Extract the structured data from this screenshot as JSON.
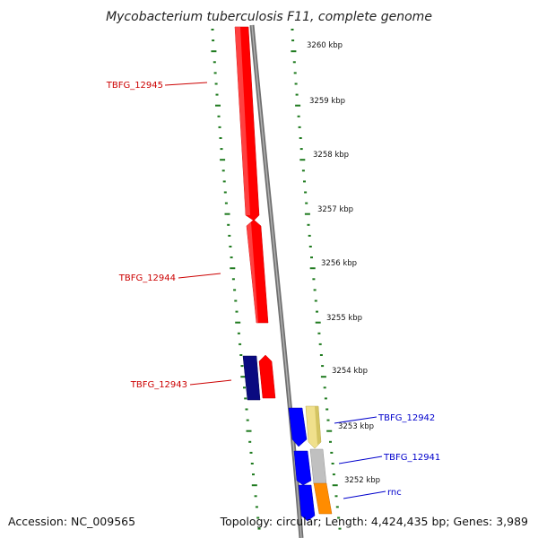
{
  "title": "Mycobacterium tuberculosis F11, complete genome",
  "footer": {
    "accession": "Accession: NC_009565",
    "stats": "Topology: circular; Length: 4,424,435 bp; Genes: 3,989"
  },
  "ticks": [
    "3260 kbp",
    "3259 kbp",
    "3258 kbp",
    "3257 kbp",
    "3256 kbp",
    "3255 kbp",
    "3254 kbp",
    "3253 kbp",
    "3252 kbp"
  ],
  "genes": [
    {
      "label": "TBFG_12945",
      "strand": "reverse",
      "color": "#cc0000"
    },
    {
      "label": "TBFG_12944",
      "strand": "reverse",
      "color": "#cc0000"
    },
    {
      "label": "TBFG_12943",
      "strand": "reverse",
      "color": "#cc0000"
    },
    {
      "label": "TBFG_12942",
      "strand": "forward",
      "color": "#0000cc"
    },
    {
      "label": "TBFG_12941",
      "strand": "forward",
      "color": "#0000cc"
    },
    {
      "label": "rnc",
      "strand": "forward",
      "color": "#0000cc"
    }
  ],
  "colors": {
    "reverse_cds": "#ff0000",
    "forward_cds": "#0000ff",
    "navy_cds": "#0a0a80",
    "backbone": "#808080",
    "dotted_ring": "#1e7a1e",
    "khaki": "#f0e08c",
    "silver": "#c0c0c0",
    "orange": "#ff8c00"
  }
}
